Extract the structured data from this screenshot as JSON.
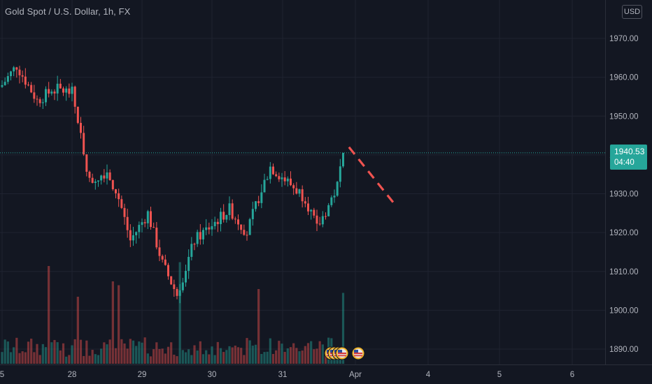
{
  "header": {
    "symbol_title": "Gold Spot / U.S. Dollar, 1h, FX",
    "currency": "USD"
  },
  "last_price": {
    "price": "1940.53",
    "countdown": "04:40"
  },
  "colors": {
    "background": "#131722",
    "grid": "#1f2330",
    "up": "#26a69a",
    "down": "#ef5350",
    "text": "#b2b5be",
    "projection": "#ef5350"
  },
  "chart_data": {
    "type": "candlestick",
    "title": "Gold Spot / U.S. Dollar, 1h, FX",
    "xlabel": "",
    "ylabel": "",
    "ylim": [
      1886,
      1973
    ],
    "y_ticks": [
      "1970.00",
      "1960.00",
      "1950.00",
      "1940.00",
      "1930.00",
      "1920.00",
      "1910.00",
      "1900.00",
      "1890.00"
    ],
    "y_tick_values": [
      1970,
      1960,
      1950,
      1940,
      1930,
      1920,
      1910,
      1900,
      1890
    ],
    "x_ticks": [
      "5",
      "28",
      "29",
      "30",
      "31",
      "Apr",
      "4",
      "5",
      "6"
    ],
    "grid": true,
    "approximate_close_path": [
      {
        "hour": 0,
        "close": 1958
      },
      {
        "hour": 5,
        "close": 1963
      },
      {
        "hour": 12,
        "close": 1954
      },
      {
        "hour": 18,
        "close": 1957
      },
      {
        "hour": 24,
        "close": 1956
      },
      {
        "hour": 26,
        "close": 1949
      },
      {
        "hour": 30,
        "close": 1933
      },
      {
        "hour": 36,
        "close": 1936
      },
      {
        "hour": 40,
        "close": 1929
      },
      {
        "hour": 44,
        "close": 1918
      },
      {
        "hour": 50,
        "close": 1925
      },
      {
        "hour": 55,
        "close": 1912
      },
      {
        "hour": 60,
        "close": 1904
      },
      {
        "hour": 66,
        "close": 1918
      },
      {
        "hour": 72,
        "close": 1922
      },
      {
        "hour": 78,
        "close": 1926
      },
      {
        "hour": 84,
        "close": 1920
      },
      {
        "hour": 88,
        "close": 1929
      },
      {
        "hour": 92,
        "close": 1937
      },
      {
        "hour": 98,
        "close": 1933
      },
      {
        "hour": 104,
        "close": 1929
      },
      {
        "hour": 108,
        "close": 1921
      },
      {
        "hour": 112,
        "close": 1927
      },
      {
        "hour": 115,
        "close": 1932
      },
      {
        "hour": 117,
        "close": 1940.53
      }
    ],
    "last_price": 1940.53,
    "projection": {
      "from": {
        "hour": 119,
        "price": 1942
      },
      "to": {
        "hour": 135,
        "price": 1927
      }
    }
  }
}
